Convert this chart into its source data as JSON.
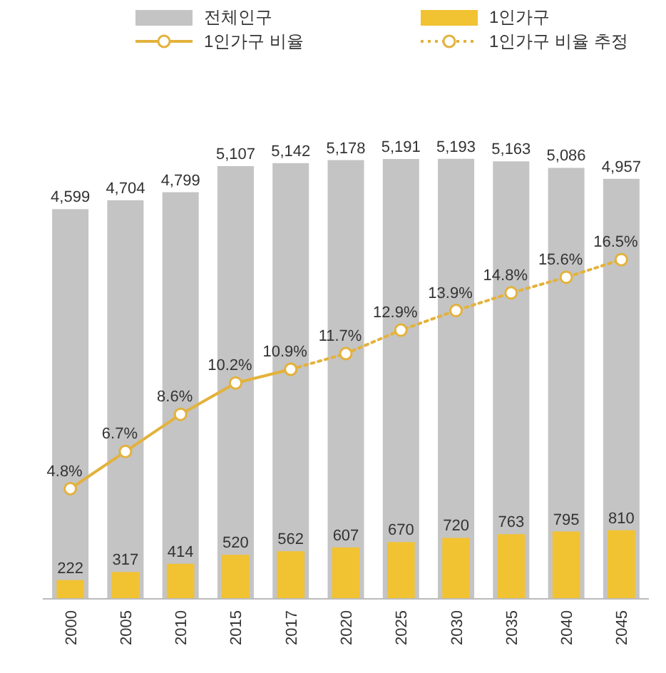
{
  "chart_data": {
    "type": "bar",
    "categories": [
      "2000",
      "2005",
      "2010",
      "2015",
      "2017",
      "2020",
      "2025",
      "2030",
      "2035",
      "2040",
      "2045"
    ],
    "series": [
      {
        "name": "전체인구",
        "color": "#c4c4c4",
        "values": [
          4599,
          4704,
          4799,
          5107,
          5142,
          5178,
          5191,
          5193,
          5163,
          5086,
          4957
        ],
        "value_labels": [
          "4,599",
          "4,704",
          "4,799",
          "5,107",
          "5,142",
          "5,178",
          "5,191",
          "5,193",
          "5,163",
          "5,086",
          "4,957"
        ]
      },
      {
        "name": "1인가구",
        "color": "#f1c232",
        "values": [
          222,
          317,
          414,
          520,
          562,
          607,
          670,
          720,
          763,
          795,
          810
        ],
        "value_labels": [
          "222",
          "317",
          "414",
          "520",
          "562",
          "607",
          "670",
          "720",
          "763",
          "795",
          "810"
        ]
      },
      {
        "name": "1인가구 비율",
        "type": "line",
        "axis": "y2",
        "color": "#e3b23c",
        "line_style": "solid",
        "marker": "circle",
        "values": [
          4.8,
          6.7,
          8.6,
          10.2,
          10.9,
          null,
          null,
          null,
          null,
          null,
          null
        ],
        "value_labels": [
          "4.8%",
          "6.7%",
          "8.6%",
          "10.2%",
          "10.9%",
          null,
          null,
          null,
          null,
          null,
          null
        ]
      },
      {
        "name": "1인가구 비율 추정",
        "type": "line",
        "axis": "y2",
        "color": "#e3b23c",
        "line_style": "dotted",
        "marker": "circle",
        "values": [
          null,
          null,
          null,
          null,
          10.9,
          11.7,
          12.9,
          13.9,
          14.8,
          15.6,
          16.5
        ],
        "value_labels": [
          null,
          null,
          null,
          null,
          null,
          "11.7%",
          "12.9%",
          "13.9%",
          "14.8%",
          "15.6%",
          "16.5%"
        ]
      }
    ],
    "tick_labels": "x",
    "legend": "top",
    "grid": false
  }
}
